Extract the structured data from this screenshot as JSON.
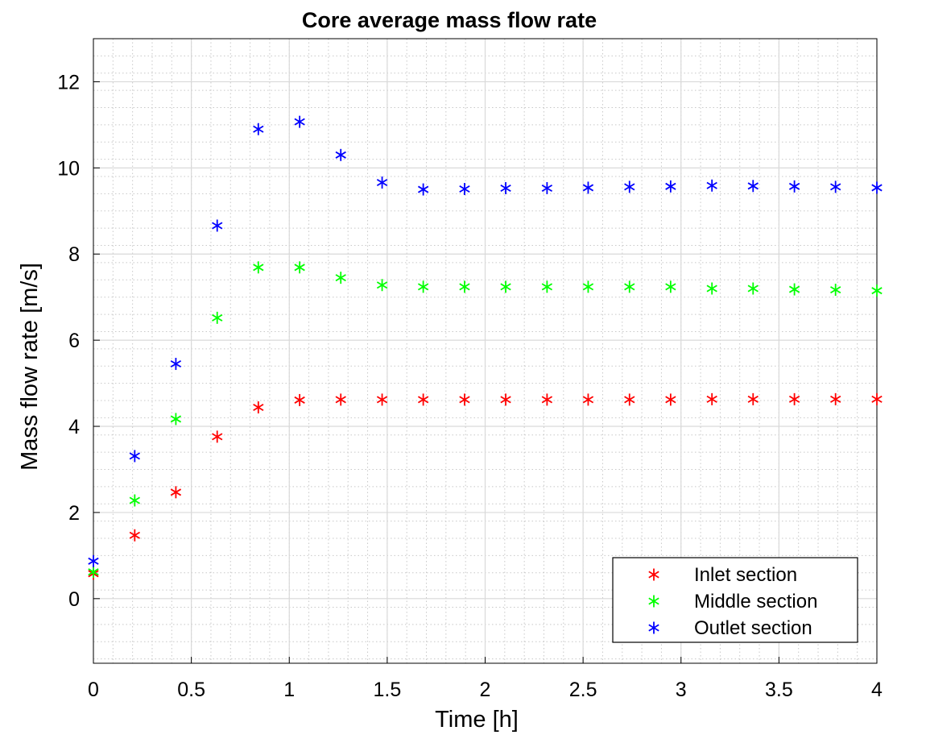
{
  "chart_data": {
    "type": "scatter",
    "title": "Core average mass flow rate",
    "xlabel": "Time [h]",
    "ylabel": "Mass flow rate [m/s]",
    "xlim": [
      0,
      4
    ],
    "ylim": [
      -1.5,
      13
    ],
    "xticks": [
      0,
      0.5,
      1,
      1.5,
      2,
      2.5,
      3,
      3.5,
      4
    ],
    "xtick_labels": [
      "0",
      "0.5",
      "1",
      "1.5",
      "2",
      "2.5",
      "3",
      "3.5",
      "4"
    ],
    "yticks": [
      0,
      2,
      4,
      6,
      8,
      10,
      12
    ],
    "ytick_labels": [
      "0",
      "2",
      "4",
      "6",
      "8",
      "10",
      "12"
    ],
    "grid": true,
    "minor_grid": true,
    "marker": "asterisk",
    "legend_position": "bottom-right",
    "x": [
      0,
      0.211,
      0.421,
      0.632,
      0.842,
      1.053,
      1.263,
      1.474,
      1.684,
      1.895,
      2.105,
      2.316,
      2.526,
      2.737,
      2.947,
      3.158,
      3.368,
      3.579,
      3.789,
      4.0
    ],
    "series": [
      {
        "name": "Inlet section",
        "color": "#ff0000",
        "values": [
          0.58,
          1.47,
          2.47,
          3.76,
          4.44,
          4.61,
          4.62,
          4.62,
          4.62,
          4.62,
          4.62,
          4.62,
          4.62,
          4.62,
          4.62,
          4.63,
          4.63,
          4.63,
          4.63,
          4.63
        ]
      },
      {
        "name": "Middle section",
        "color": "#00ff00",
        "values": [
          0.62,
          2.28,
          4.17,
          6.52,
          7.69,
          7.69,
          7.45,
          7.28,
          7.24,
          7.24,
          7.24,
          7.24,
          7.24,
          7.24,
          7.24,
          7.2,
          7.2,
          7.18,
          7.17,
          7.15
        ]
      },
      {
        "name": "Outlet section",
        "color": "#0000ff",
        "values": [
          0.87,
          3.31,
          5.45,
          8.66,
          10.9,
          11.07,
          10.3,
          9.66,
          9.5,
          9.51,
          9.53,
          9.53,
          9.54,
          9.56,
          9.57,
          9.59,
          9.58,
          9.57,
          9.56,
          9.54
        ]
      }
    ]
  }
}
